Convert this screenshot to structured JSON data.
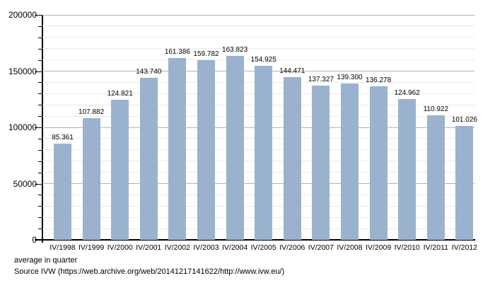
{
  "chart_data": {
    "type": "bar",
    "title": "",
    "categories": [
      "IV/1998",
      "IV/1999",
      "IV/2000",
      "IV/2001",
      "IV/2002",
      "IV/2003",
      "IV/2004",
      "IV/2005",
      "IV/2006",
      "IV/2007",
      "IV/2008",
      "IV/2009",
      "IV/2010",
      "IV/2011",
      "IV/2012"
    ],
    "values": [
      85361,
      107882,
      124821,
      143740,
      161386,
      159782,
      163823,
      154925,
      144471,
      137327,
      139300,
      136278,
      124962,
      110922,
      101026
    ],
    "value_labels": [
      "85.361",
      "107.882",
      "124.821",
      "143.740",
      "161.386",
      "159.782",
      "163.823",
      "154.925",
      "144.471",
      "137.327",
      "139.300",
      "136.278",
      "124.962",
      "110.922",
      "101.026"
    ],
    "xlabel": "",
    "ylabel": "",
    "ylim": [
      0,
      200000
    ],
    "y_minor_step": 10000,
    "y_major_step": 50000,
    "y_tick_values": [
      0,
      50000,
      100000,
      150000,
      200000
    ],
    "y_tick_labels": [
      "0",
      "50000",
      "100000",
      "150000",
      "200000"
    ],
    "bar_color": "#9ab2ce",
    "grid": "horizontal minor+major",
    "legend": "none"
  },
  "footer": {
    "caption": "average in quarter",
    "source": "Source IVW (https://web.archive.org/web/20141217141622/http://www.ivw.eu/)"
  }
}
